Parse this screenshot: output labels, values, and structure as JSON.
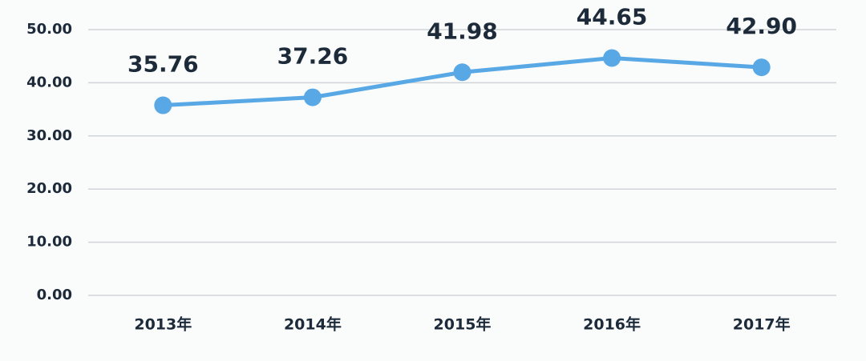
{
  "chart_data": {
    "type": "line",
    "categories": [
      "2013年",
      "2014年",
      "2015年",
      "2016年",
      "2017年"
    ],
    "values": [
      35.76,
      37.26,
      41.98,
      44.65,
      42.9
    ],
    "value_labels": [
      "35.76",
      "37.26",
      "41.98",
      "44.65",
      "42.90"
    ],
    "color": "#58a8e6",
    "ylim": [
      0,
      50
    ],
    "yticks": [
      {
        "value": 0,
        "label": "0.00"
      },
      {
        "value": 10,
        "label": "10.00"
      },
      {
        "value": 20,
        "label": "20.00"
      },
      {
        "value": 30,
        "label": "30.00"
      },
      {
        "value": 40,
        "label": "40.00"
      },
      {
        "value": 50,
        "label": "50.00"
      }
    ],
    "grid": true
  }
}
